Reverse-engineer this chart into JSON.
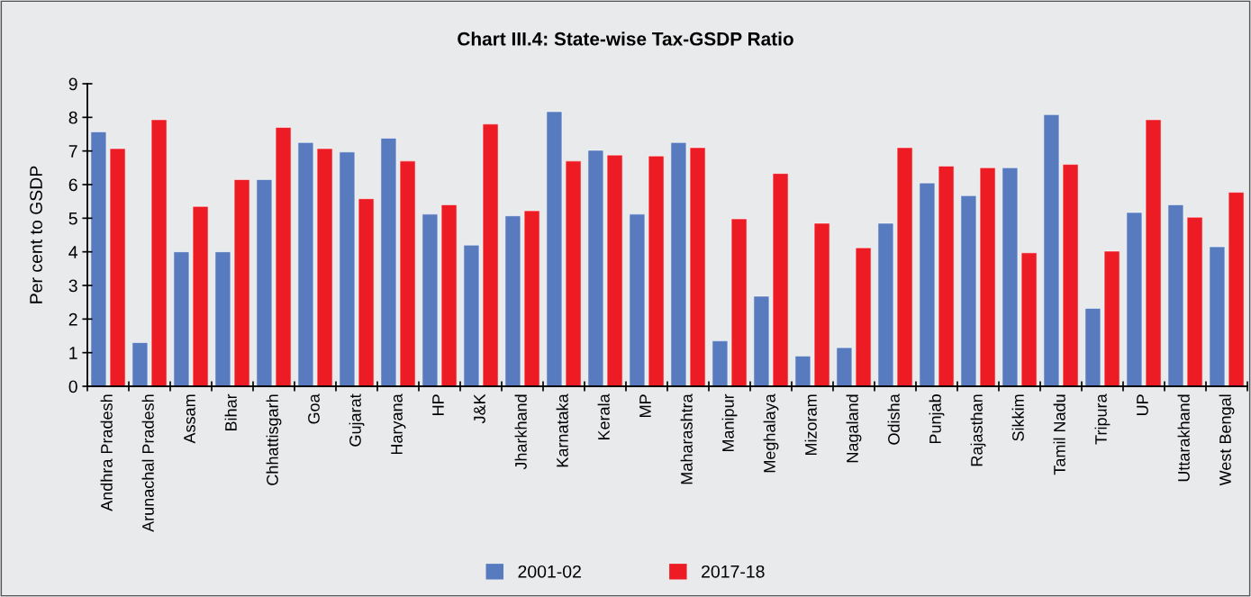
{
  "chart_data": {
    "type": "bar",
    "title": "Chart III.4: State-wise Tax-GSDP Ratio",
    "ylabel": "Per cent to GSDP",
    "categories": [
      "Andhra Pradesh",
      "Arunachal Pradesh",
      "Assam",
      "Bihar",
      "Chhattisgarh",
      "Goa",
      "Gujarat",
      "Haryana",
      "HP",
      "J&K",
      "Jharkhand",
      "Karnataka",
      "Kerala",
      "MP",
      "Maharashtra",
      "Manipur",
      "Meghalaya",
      "Mizoram",
      "Nagaland",
      "Odisha",
      "Punjab",
      "Rajasthan",
      "Sikkim",
      "Tamil Nadu",
      "Tripura",
      "UP",
      "Uttarakhand",
      "West Bengal"
    ],
    "series": [
      {
        "name": "2001-02",
        "color": "#587bbf",
        "values": [
          7.57,
          1.3,
          4.0,
          4.0,
          6.15,
          7.25,
          6.97,
          7.38,
          5.12,
          4.2,
          5.07,
          8.17,
          7.02,
          5.12,
          7.25,
          1.35,
          2.68,
          0.9,
          1.15,
          4.85,
          6.05,
          5.67,
          6.5,
          8.08,
          2.32,
          5.17,
          5.4,
          4.15
        ]
      },
      {
        "name": "2017-18",
        "color": "#ed1c24",
        "values": [
          7.07,
          7.93,
          5.35,
          6.15,
          7.7,
          7.07,
          5.58,
          6.7,
          5.4,
          7.8,
          5.22,
          6.7,
          6.88,
          6.85,
          7.1,
          4.98,
          6.33,
          4.85,
          4.12,
          7.1,
          6.55,
          6.5,
          3.97,
          6.6,
          4.02,
          7.93,
          5.03,
          5.77
        ]
      }
    ],
    "ylim": [
      0,
      9
    ],
    "yticks": [
      0,
      1,
      2,
      3,
      4,
      5,
      6,
      7,
      8,
      9
    ],
    "grid": false,
    "legend": "bottom"
  }
}
